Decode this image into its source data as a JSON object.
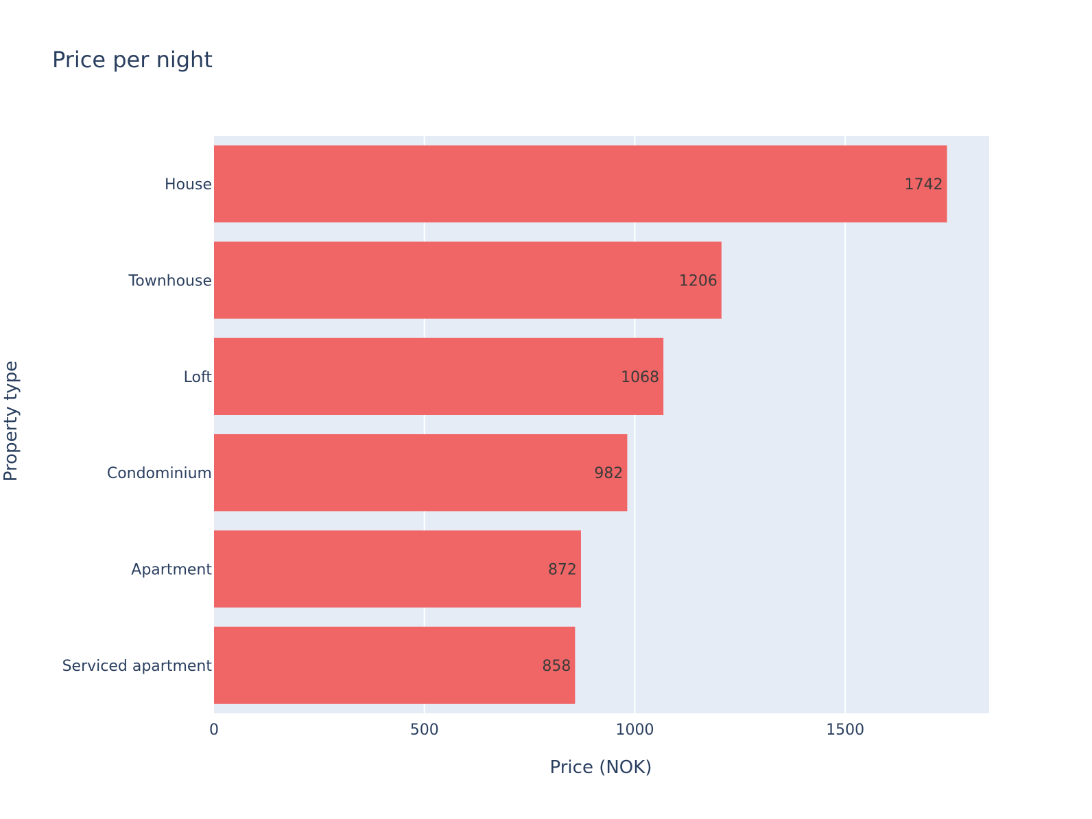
{
  "chart_data": {
    "type": "bar",
    "orientation": "horizontal",
    "title": "Price per night",
    "xlabel": "Price (NOK)",
    "ylabel": "Property type",
    "categories": [
      "House",
      "Townhouse",
      "Loft",
      "Condominium",
      "Apartment",
      "Serviced apartment"
    ],
    "values": [
      1742,
      1206,
      1068,
      982,
      872,
      858
    ],
    "xlim": [
      0,
      1842
    ],
    "xticks": [
      0,
      500,
      1000,
      1500
    ],
    "xtick_labels": [
      "0",
      "500",
      "1000",
      "1500"
    ],
    "grid": true,
    "legend": "none",
    "colors": {
      "bar": "#f06565",
      "plot_bg": "#e5ecf6",
      "grid": "#ffffff",
      "text": "#2a3f5f",
      "bar_label": "#3b3b3b"
    }
  }
}
